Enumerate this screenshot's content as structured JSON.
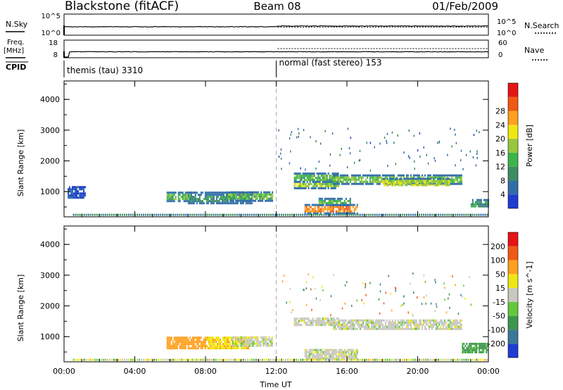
{
  "header": {
    "station": "Blackstone (fitACF)",
    "beam": "Beam 08",
    "date": "01/Feb/2009"
  },
  "summary_panels": {
    "nsky_label": "N.Sky",
    "nsearch_label": "N.Search",
    "freq_label": "Freq.",
    "freq_unit": "[MHz]",
    "nave_label": "Nave",
    "cpid_label": "CPID",
    "noise_ticks": [
      "10^5",
      "10^0"
    ],
    "freq_ticks": [
      "18",
      "8"
    ],
    "nave_ticks": [
      "60",
      "0"
    ]
  },
  "cpid_segments": [
    {
      "label": "themis (tau) 3310",
      "start_hour": 0
    },
    {
      "label": "normal (fast stereo) 153",
      "start_hour": 12
    }
  ],
  "chart_data": [
    {
      "type": "heatmap",
      "title": "Power",
      "ylabel": "Slant Range [km]",
      "xlabel": "Time UT",
      "x_ticks": [
        "00:00",
        "04:00",
        "08:00",
        "12:00",
        "16:00",
        "20:00",
        "00:00"
      ],
      "x_range_hours": [
        0,
        24
      ],
      "y_ticks": [
        1000,
        2000,
        3000,
        4000
      ],
      "y_range_km": [
        180,
        4600
      ],
      "colorbar": {
        "label": "Power [dB]",
        "ticks": [
          4,
          8,
          12,
          16,
          20,
          24,
          28
        ],
        "colors": [
          "#1e3cd2",
          "#326ea8",
          "#3c8c64",
          "#3cb44b",
          "#96c83c",
          "#f0e614",
          "#ff9f1e",
          "#f05a14",
          "#e61414"
        ]
      },
      "regions": [
        {
          "t": [
            0.2,
            1.2
          ],
          "r": [
            820,
            1180
          ],
          "v": 4
        },
        {
          "t": [
            5.8,
            7.2
          ],
          "r": [
            700,
            1000
          ],
          "v": 14
        },
        {
          "t": [
            7.0,
            10.6
          ],
          "r": [
            650,
            1000
          ],
          "v": 10
        },
        {
          "t": [
            9.2,
            11.8
          ],
          "r": [
            720,
            1010
          ],
          "v": 15
        },
        {
          "t": [
            13.0,
            15.5
          ],
          "r": [
            1350,
            1620
          ],
          "v": 14
        },
        {
          "t": [
            13.0,
            15.5
          ],
          "r": [
            1100,
            1350
          ],
          "v": 18
        },
        {
          "t": [
            15.2,
            22.5
          ],
          "r": [
            1220,
            1560
          ],
          "v": 16
        },
        {
          "t": [
            18.0,
            21.8
          ],
          "r": [
            1180,
            1450
          ],
          "v": 20
        },
        {
          "t": [
            13.6,
            16.6
          ],
          "r": [
            300,
            600
          ],
          "v": 28
        },
        {
          "t": [
            14.4,
            16.2
          ],
          "r": [
            580,
            800
          ],
          "v": 14
        },
        {
          "t": [
            23.0,
            24.0
          ],
          "r": [
            500,
            760
          ],
          "v": 10
        }
      ]
    },
    {
      "type": "heatmap",
      "title": "Velocity",
      "ylabel": "Slant Range [km]",
      "xlabel": "Time UT",
      "x_ticks": [
        "00:00",
        "04:00",
        "08:00",
        "12:00",
        "16:00",
        "20:00",
        "00:00"
      ],
      "x_range_hours": [
        0,
        24
      ],
      "y_ticks": [
        1000,
        2000,
        3000,
        4000
      ],
      "y_range_km": [
        180,
        4600
      ],
      "colorbar": {
        "label": "Velocity [m s^-1]",
        "ticks": [
          200,
          100,
          50,
          15,
          -15,
          -50,
          -100,
          -200
        ],
        "colors": [
          "#1e3cd2",
          "#3c7896",
          "#3c9650",
          "#64c83c",
          "#c8c8c0",
          "#f0e614",
          "#ffa01e",
          "#f05a14",
          "#e61414"
        ]
      },
      "regions": [
        {
          "t": [
            5.8,
            8.0
          ],
          "r": [
            650,
            1000
          ],
          "v": -80
        },
        {
          "t": [
            8.0,
            10.5
          ],
          "r": [
            650,
            1000
          ],
          "v": -40
        },
        {
          "t": [
            9.5,
            11.8
          ],
          "r": [
            720,
            1010
          ],
          "v": 0
        },
        {
          "t": [
            13.0,
            15.5
          ],
          "r": [
            1350,
            1620
          ],
          "v": 0
        },
        {
          "t": [
            15.2,
            22.5
          ],
          "r": [
            1220,
            1560
          ],
          "v": 0
        },
        {
          "t": [
            13.6,
            16.6
          ],
          "r": [
            300,
            600
          ],
          "v": 0
        },
        {
          "t": [
            22.5,
            24.0
          ],
          "r": [
            500,
            800
          ],
          "v": 60
        }
      ]
    }
  ]
}
